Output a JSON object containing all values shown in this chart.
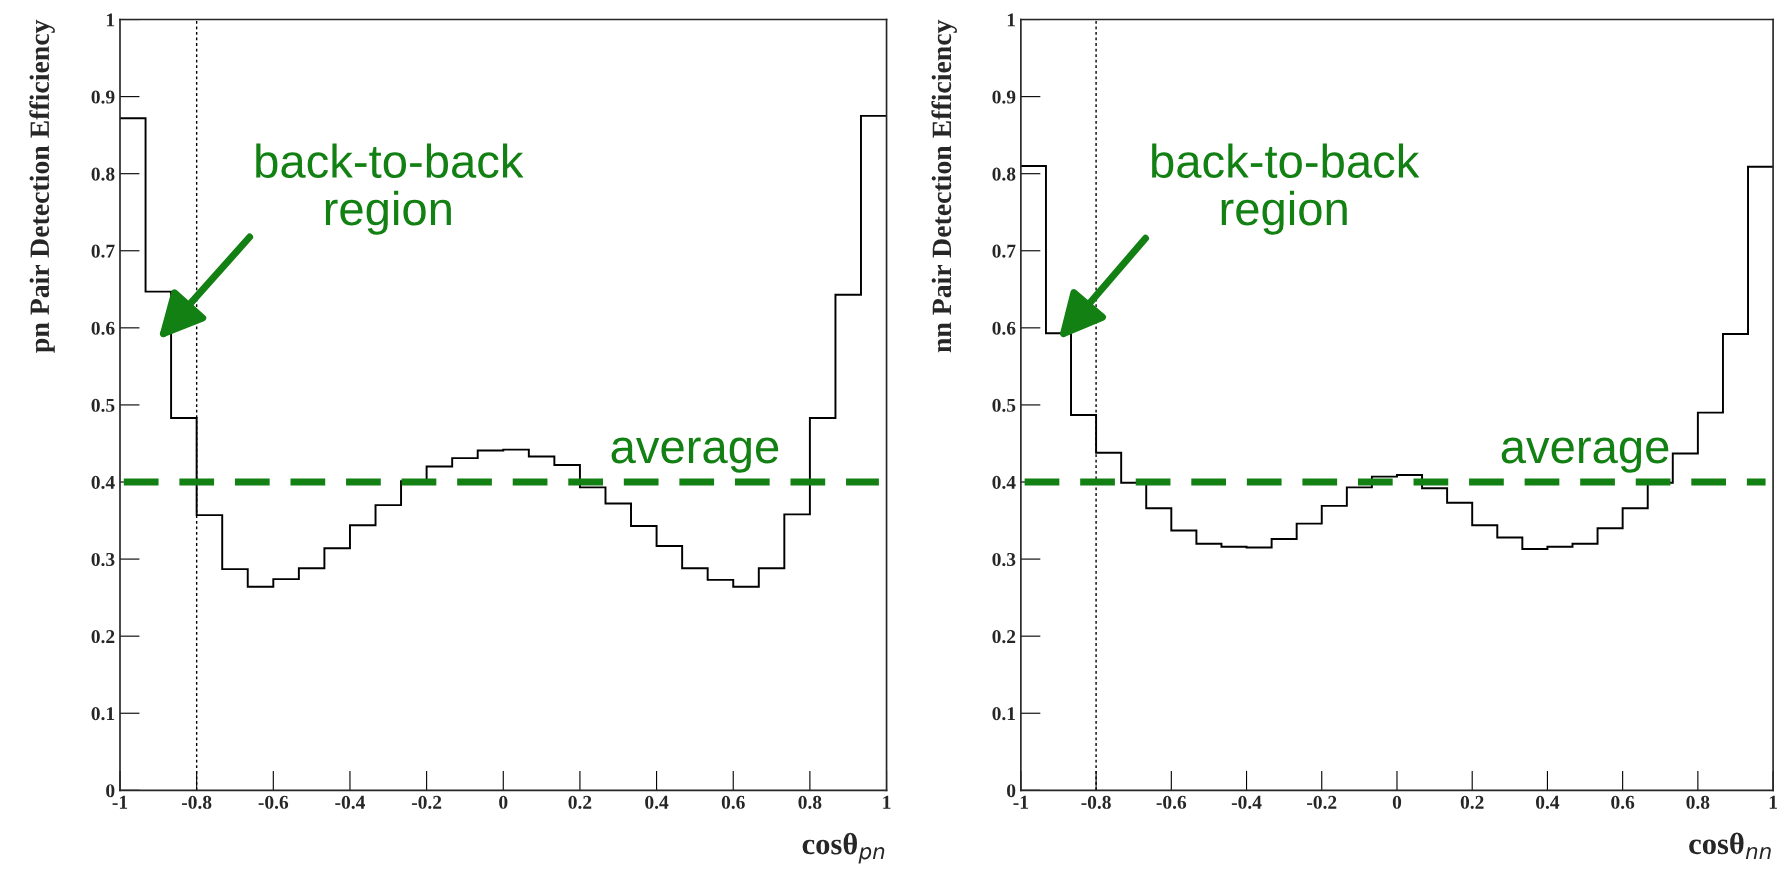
{
  "chart_data": [
    {
      "type": "histogram",
      "xlabel": "cosθ$_{pn}$",
      "ylabel": "pn Pair Detection Efficiency",
      "bins": [
        -1,
        -0.9333,
        -0.8667,
        -0.8,
        -0.7333,
        -0.6667,
        -0.6,
        -0.5333,
        -0.4667,
        -0.4,
        -0.3333,
        -0.2667,
        -0.2,
        -0.1333,
        -0.0667,
        0,
        0.0667,
        0.1333,
        0.2,
        0.2667,
        0.3333,
        0.4,
        0.4667,
        0.5333,
        0.6,
        0.6667,
        0.7333,
        0.8,
        0.8667,
        0.9333,
        1
      ],
      "values": [
        0.872,
        0.647,
        0.483,
        0.357,
        0.287,
        0.264,
        0.274,
        0.288,
        0.314,
        0.344,
        0.37,
        0.401,
        0.42,
        0.431,
        0.441,
        0.442,
        0.433,
        0.422,
        0.393,
        0.372,
        0.343,
        0.317,
        0.288,
        0.273,
        0.264,
        0.288,
        0.358,
        0.483,
        0.643,
        0.875
      ],
      "color": "#000000",
      "xlim": [
        -1,
        1
      ],
      "ylim": [
        0,
        1
      ],
      "xticks": [
        -1,
        -0.8,
        -0.6,
        -0.4,
        -0.2,
        0,
        0.2,
        0.4,
        0.6,
        0.8,
        1
      ],
      "yticks": [
        0,
        0.1,
        0.2,
        0.3,
        0.4,
        0.5,
        0.6,
        0.7,
        0.8,
        0.9,
        1
      ],
      "ref_lines": [
        {
          "axis": "x",
          "value": -0.8,
          "color": "#000000",
          "line_style": "dotted"
        },
        {
          "axis": "y",
          "value": 0.4,
          "label": "average",
          "color": "#138013",
          "line_style": "dashed"
        }
      ],
      "annotations": [
        "back-to-back\nregion"
      ],
      "grid": false
    },
    {
      "type": "histogram",
      "xlabel": "cosθ$_{nn}$",
      "ylabel": "nn Pair Detection Efficiency",
      "bins": [
        -1,
        -0.9333,
        -0.8667,
        -0.8,
        -0.7333,
        -0.6667,
        -0.6,
        -0.5333,
        -0.4667,
        -0.4,
        -0.3333,
        -0.2667,
        -0.2,
        -0.1333,
        -0.0667,
        0,
        0.0667,
        0.1333,
        0.2,
        0.2667,
        0.3333,
        0.4,
        0.4667,
        0.5333,
        0.6,
        0.6667,
        0.7333,
        0.8,
        0.8667,
        0.9333,
        1
      ],
      "values": [
        0.81,
        0.593,
        0.487,
        0.438,
        0.399,
        0.366,
        0.337,
        0.32,
        0.316,
        0.315,
        0.326,
        0.346,
        0.369,
        0.393,
        0.407,
        0.409,
        0.392,
        0.373,
        0.344,
        0.328,
        0.313,
        0.316,
        0.32,
        0.34,
        0.366,
        0.399,
        0.437,
        0.49,
        0.592,
        0.809
      ],
      "color": "#000000",
      "xlim": [
        -1,
        1
      ],
      "ylim": [
        0,
        1
      ],
      "xticks": [
        -1,
        -0.8,
        -0.6,
        -0.4,
        -0.2,
        0,
        0.2,
        0.4,
        0.6,
        0.8,
        1
      ],
      "yticks": [
        0,
        0.1,
        0.2,
        0.3,
        0.4,
        0.5,
        0.6,
        0.7,
        0.8,
        0.9,
        1
      ],
      "ref_lines": [
        {
          "axis": "x",
          "value": -0.8,
          "color": "#000000",
          "line_style": "dotted"
        },
        {
          "axis": "y",
          "value": 0.4,
          "label": "average",
          "color": "#138013",
          "line_style": "dashed"
        }
      ],
      "annotations": [
        "back-to-back\nregion"
      ],
      "grid": false
    }
  ]
}
